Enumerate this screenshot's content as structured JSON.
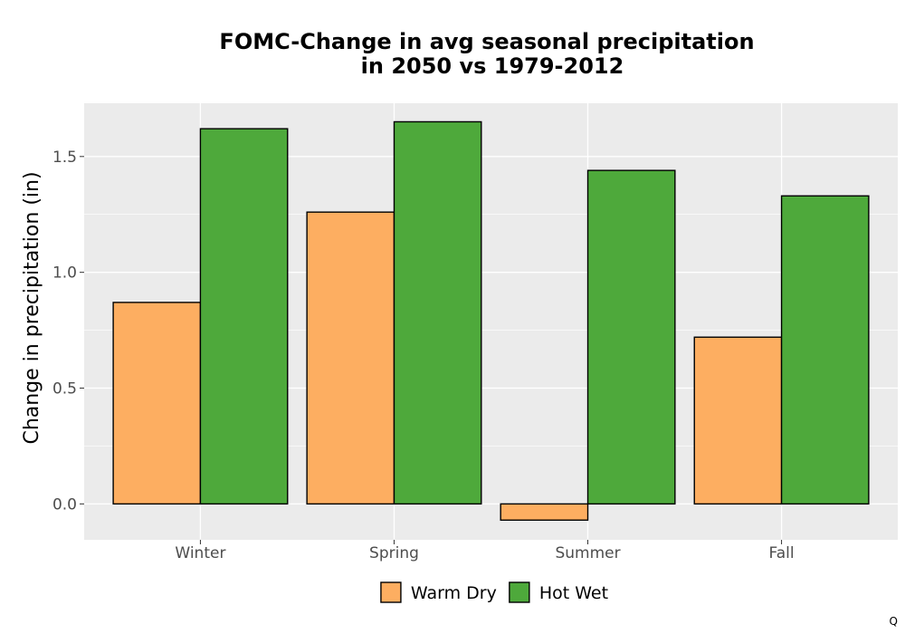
{
  "chart_data": {
    "type": "bar",
    "title_line1": "FOMC-Change in avg seasonal precipitation",
    "title_line2": "in 2050 vs 1979-2012",
    "xlabel": "",
    "ylabel": "Change in precipitation (in)",
    "categories": [
      "Winter",
      "Spring",
      "Summer",
      "Fall"
    ],
    "series": [
      {
        "name": "Warm Dry",
        "color": "#fdae61",
        "values": [
          0.87,
          1.26,
          -0.07,
          0.72
        ]
      },
      {
        "name": "Hot Wet",
        "color": "#4ea93b",
        "values": [
          1.62,
          1.65,
          1.44,
          1.33
        ]
      }
    ],
    "ylim": [
      -0.155,
      1.73
    ],
    "yticks": [
      0.0,
      0.5,
      1.0,
      1.5
    ],
    "ytick_labels": [
      "0.0",
      "0.5",
      "1.0",
      "1.5"
    ],
    "grid": true,
    "legend_position": "bottom",
    "panel_background": "#ebebeb"
  },
  "corner_mark": "Q"
}
